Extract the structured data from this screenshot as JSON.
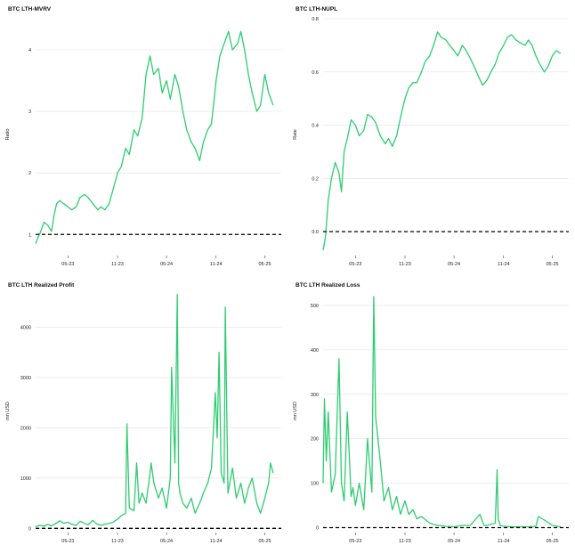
{
  "colors": {
    "line": "#2ecc71",
    "grid": "#e2e2e2",
    "baseline": "#000000"
  },
  "chart_data": [
    {
      "type": "line",
      "title": "BTC LTH-MVRV",
      "xlabel": "",
      "ylabel": "Ratio",
      "x_tick_labels": [
        "05-23",
        "11-23",
        "05-24",
        "11-24",
        "05-25"
      ],
      "y_ticks": [
        1,
        2,
        3,
        4
      ],
      "ylim": [
        0.7,
        4.55
      ],
      "reference_line": 1,
      "grid": true,
      "series": [
        {
          "name": "",
          "x": [
            "2023-01-01",
            "2023-01-10",
            "2023-01-20",
            "2023-02-01",
            "2023-02-15",
            "2023-03-01",
            "2023-03-10",
            "2023-03-20",
            "2023-04-01",
            "2023-04-15",
            "2023-05-01",
            "2023-05-15",
            "2023-06-01",
            "2023-06-15",
            "2023-07-01",
            "2023-07-15",
            "2023-08-01",
            "2023-08-20",
            "2023-09-01",
            "2023-09-15",
            "2023-10-01",
            "2023-10-20",
            "2023-11-01",
            "2023-11-15",
            "2023-12-01",
            "2023-12-15",
            "2024-01-01",
            "2024-01-15",
            "2024-02-01",
            "2024-02-15",
            "2024-03-01",
            "2024-03-14",
            "2024-04-01",
            "2024-04-15",
            "2024-05-01",
            "2024-05-15",
            "2024-06-01",
            "2024-06-15",
            "2024-07-01",
            "2024-07-15",
            "2024-08-01",
            "2024-08-15",
            "2024-09-01",
            "2024-09-15",
            "2024-10-01",
            "2024-10-15",
            "2024-11-01",
            "2024-11-15",
            "2024-12-01",
            "2024-12-17",
            "2025-01-01",
            "2025-01-20",
            "2025-02-01",
            "2025-02-15",
            "2025-03-01",
            "2025-03-15",
            "2025-04-01",
            "2025-04-15",
            "2025-05-01",
            "2025-05-15",
            "2025-06-01"
          ],
          "values": [
            0.85,
            0.95,
            1.05,
            1.2,
            1.15,
            1.05,
            1.3,
            1.5,
            1.55,
            1.5,
            1.45,
            1.4,
            1.45,
            1.6,
            1.65,
            1.6,
            1.5,
            1.4,
            1.45,
            1.4,
            1.5,
            1.8,
            2.0,
            2.1,
            2.4,
            2.3,
            2.7,
            2.6,
            2.9,
            3.6,
            3.9,
            3.6,
            3.7,
            3.3,
            3.5,
            3.2,
            3.6,
            3.4,
            3.0,
            2.7,
            2.5,
            2.4,
            2.2,
            2.5,
            2.7,
            2.8,
            3.5,
            3.9,
            4.1,
            4.3,
            4.0,
            4.1,
            4.3,
            4.0,
            3.6,
            3.3,
            3.0,
            3.1,
            3.6,
            3.3,
            3.1
          ]
        }
      ]
    },
    {
      "type": "line",
      "title": "BTC LTH-NUPL",
      "xlabel": "",
      "ylabel": "Rate",
      "x_tick_labels": [
        "05-23",
        "11-23",
        "05-24",
        "11-24",
        "05-25"
      ],
      "y_ticks": [
        0.0,
        0.2,
        0.4,
        0.6,
        0.8
      ],
      "y_tick_labels": [
        "0.0",
        "0.2",
        "0.4",
        "0.6",
        "0.8"
      ],
      "ylim": [
        -0.08,
        0.81
      ],
      "reference_line": 0,
      "grid": true,
      "series": [
        {
          "name": "",
          "x": [
            "2023-01-01",
            "2023-01-10",
            "2023-01-20",
            "2023-02-01",
            "2023-02-15",
            "2023-03-01",
            "2023-03-10",
            "2023-03-20",
            "2023-04-01",
            "2023-04-15",
            "2023-05-01",
            "2023-05-15",
            "2023-06-01",
            "2023-06-15",
            "2023-07-01",
            "2023-07-15",
            "2023-08-01",
            "2023-08-20",
            "2023-09-01",
            "2023-09-15",
            "2023-10-01",
            "2023-10-20",
            "2023-11-01",
            "2023-11-15",
            "2023-12-01",
            "2023-12-15",
            "2024-01-01",
            "2024-01-15",
            "2024-02-01",
            "2024-02-15",
            "2024-03-01",
            "2024-03-14",
            "2024-04-01",
            "2024-04-15",
            "2024-05-01",
            "2024-05-15",
            "2024-06-01",
            "2024-06-15",
            "2024-07-01",
            "2024-07-15",
            "2024-08-01",
            "2024-08-15",
            "2024-09-01",
            "2024-09-15",
            "2024-10-01",
            "2024-10-15",
            "2024-11-01",
            "2024-11-15",
            "2024-12-01",
            "2024-12-17",
            "2025-01-01",
            "2025-01-20",
            "2025-02-01",
            "2025-02-15",
            "2025-03-01",
            "2025-03-15",
            "2025-04-01",
            "2025-04-15",
            "2025-05-01",
            "2025-05-15",
            "2025-06-01"
          ],
          "values": [
            -0.07,
            -0.02,
            0.12,
            0.2,
            0.26,
            0.22,
            0.15,
            0.3,
            0.35,
            0.42,
            0.4,
            0.36,
            0.38,
            0.44,
            0.43,
            0.41,
            0.36,
            0.33,
            0.35,
            0.32,
            0.36,
            0.45,
            0.5,
            0.54,
            0.56,
            0.56,
            0.6,
            0.64,
            0.66,
            0.7,
            0.75,
            0.73,
            0.72,
            0.7,
            0.68,
            0.66,
            0.7,
            0.68,
            0.65,
            0.62,
            0.58,
            0.55,
            0.57,
            0.6,
            0.63,
            0.67,
            0.7,
            0.73,
            0.74,
            0.72,
            0.71,
            0.7,
            0.72,
            0.7,
            0.66,
            0.63,
            0.6,
            0.62,
            0.66,
            0.68,
            0.67
          ]
        }
      ]
    },
    {
      "type": "line",
      "title": "BTC LTH Realized Profit",
      "xlabel": "",
      "ylabel": "mn USD",
      "x_tick_labels": [
        "05-23",
        "11-23",
        "05-24",
        "11-24",
        "05-25"
      ],
      "y_ticks": [
        0,
        1000,
        2000,
        3000,
        4000
      ],
      "ylim": [
        -30,
        4700
      ],
      "reference_line": 0,
      "grid": true,
      "series": [
        {
          "name": "",
          "x": [
            "2023-01-01",
            "2023-01-15",
            "2023-02-01",
            "2023-02-15",
            "2023-03-01",
            "2023-03-15",
            "2023-04-01",
            "2023-04-15",
            "2023-05-01",
            "2023-05-15",
            "2023-06-01",
            "2023-06-15",
            "2023-07-01",
            "2023-07-15",
            "2023-08-01",
            "2023-08-15",
            "2023-09-01",
            "2023-09-15",
            "2023-10-01",
            "2023-10-15",
            "2023-11-01",
            "2023-11-15",
            "2023-12-01",
            "2023-12-06",
            "2023-12-15",
            "2024-01-01",
            "2024-01-11",
            "2024-01-20",
            "2024-02-01",
            "2024-02-15",
            "2024-03-01",
            "2024-03-05",
            "2024-03-15",
            "2024-04-01",
            "2024-04-15",
            "2024-05-01",
            "2024-05-15",
            "2024-05-20",
            "2024-06-01",
            "2024-06-10",
            "2024-06-15",
            "2024-06-20",
            "2024-07-01",
            "2024-07-15",
            "2024-08-01",
            "2024-08-15",
            "2024-09-01",
            "2024-09-15",
            "2024-10-01",
            "2024-10-15",
            "2024-10-29",
            "2024-11-05",
            "2024-11-12",
            "2024-11-20",
            "2024-12-01",
            "2024-12-05",
            "2024-12-15",
            "2025-01-01",
            "2025-01-15",
            "2025-02-01",
            "2025-02-15",
            "2025-03-01",
            "2025-03-15",
            "2025-04-01",
            "2025-04-15",
            "2025-05-01",
            "2025-05-15",
            "2025-05-22",
            "2025-06-01"
          ],
          "values": [
            30,
            60,
            40,
            80,
            50,
            90,
            150,
            100,
            120,
            80,
            60,
            140,
            100,
            70,
            160,
            90,
            60,
            80,
            100,
            120,
            180,
            250,
            300,
            2080,
            400,
            350,
            1300,
            500,
            700,
            500,
            1100,
            1300,
            900,
            600,
            800,
            400,
            1000,
            3200,
            1300,
            4650,
            900,
            700,
            500,
            400,
            600,
            300,
            500,
            700,
            900,
            1200,
            2700,
            1800,
            3500,
            1100,
            900,
            4400,
            700,
            1200,
            600,
            900,
            500,
            800,
            1000,
            500,
            300,
            600,
            900,
            1300,
            1100
          ]
        }
      ]
    },
    {
      "type": "line",
      "title": "BTC LTH Realized Loss",
      "xlabel": "",
      "ylabel": "mn USD",
      "x_tick_labels": [
        "05-23",
        "11-23",
        "05-24",
        "11-24",
        "05-25"
      ],
      "y_ticks": [
        0,
        100,
        200,
        300,
        400,
        500
      ],
      "ylim": [
        -5,
        530
      ],
      "reference_line": 0,
      "grid": true,
      "series": [
        {
          "name": "",
          "x": [
            "2023-01-01",
            "2023-01-06",
            "2023-01-13",
            "2023-01-20",
            "2023-02-01",
            "2023-02-15",
            "2023-03-01",
            "2023-03-10",
            "2023-03-20",
            "2023-04-01",
            "2023-04-15",
            "2023-04-22",
            "2023-05-01",
            "2023-05-15",
            "2023-06-01",
            "2023-06-15",
            "2023-07-01",
            "2023-07-08",
            "2023-07-15",
            "2023-08-01",
            "2023-08-15",
            "2023-09-01",
            "2023-09-15",
            "2023-10-01",
            "2023-10-15",
            "2023-11-01",
            "2023-11-15",
            "2023-12-01",
            "2023-12-15",
            "2024-01-01",
            "2024-02-01",
            "2024-03-01",
            "2024-04-01",
            "2024-05-01",
            "2024-06-01",
            "2024-07-01",
            "2024-08-05",
            "2024-08-20",
            "2024-09-01",
            "2024-10-01",
            "2024-10-08",
            "2024-10-12",
            "2024-10-20",
            "2024-11-01",
            "2024-12-01",
            "2025-01-01",
            "2025-02-01",
            "2025-03-01",
            "2025-03-10",
            "2025-04-07",
            "2025-05-01",
            "2025-06-01"
          ],
          "values": [
            100,
            290,
            150,
            260,
            80,
            120,
            380,
            100,
            60,
            260,
            70,
            90,
            50,
            100,
            40,
            200,
            80,
            520,
            250,
            150,
            60,
            90,
            40,
            70,
            30,
            60,
            30,
            40,
            20,
            25,
            10,
            5,
            3,
            2,
            5,
            5,
            30,
            5,
            5,
            10,
            130,
            20,
            5,
            3,
            2,
            2,
            2,
            3,
            25,
            15,
            5,
            2
          ]
        }
      ]
    }
  ]
}
